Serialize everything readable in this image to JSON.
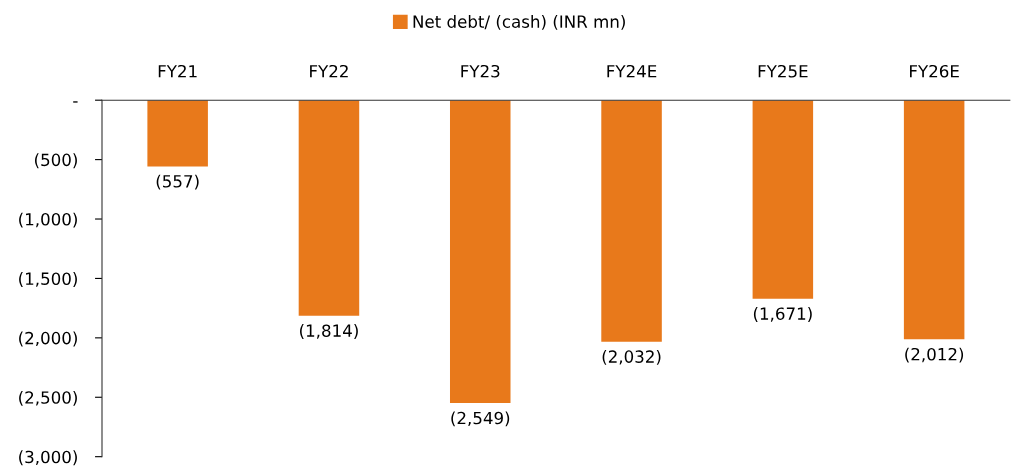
{
  "chart_data": {
    "type": "bar",
    "categories": [
      "FY21",
      "FY22",
      "FY23",
      "FY24E",
      "FY25E",
      "FY26E"
    ],
    "series": [
      {
        "name": "Net debt/ (cash) (INR mn)",
        "color": "#e8791b",
        "values": [
          -557,
          -1814,
          -2549,
          -2032,
          -1671,
          -2012
        ],
        "value_labels": [
          "(557)",
          "(1,814)",
          "(2,549)",
          "(2,032)",
          "(1,671)",
          "(2,012)"
        ]
      }
    ],
    "ylim": [
      -3000,
      0
    ],
    "yticks": [
      {
        "value": 0,
        "label": "-"
      },
      {
        "value": -500,
        "label": "(500)"
      },
      {
        "value": -1000,
        "label": "(1,000)"
      },
      {
        "value": -1500,
        "label": "(1,500)"
      },
      {
        "value": -2000,
        "label": "(2,000)"
      },
      {
        "value": -2500,
        "label": "(2,500)"
      },
      {
        "value": -3000,
        "label": "(3,000)"
      }
    ],
    "legend": "top",
    "grid": false
  }
}
